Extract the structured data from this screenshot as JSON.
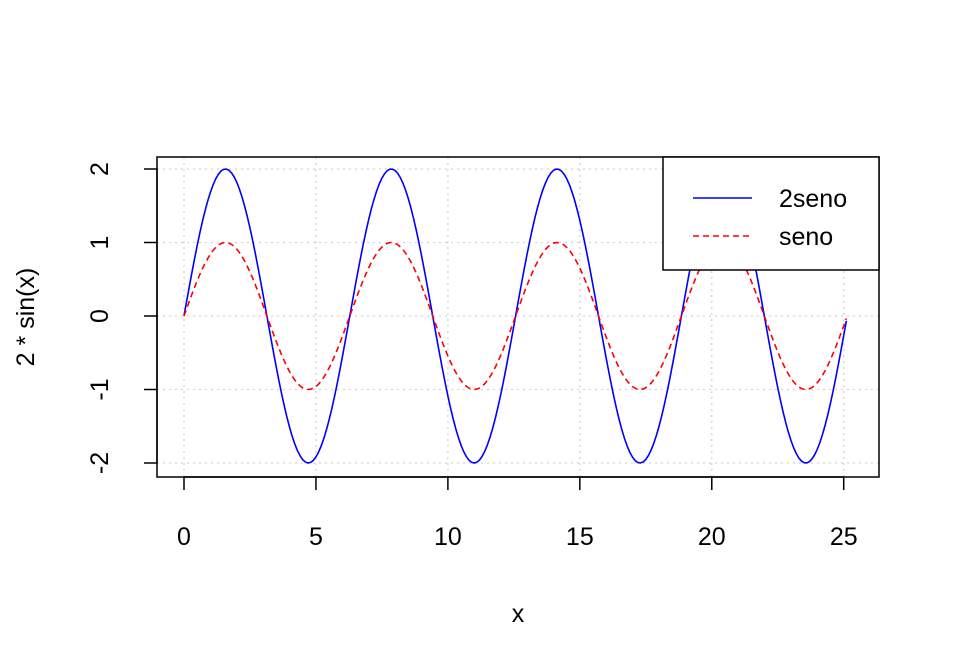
{
  "chart_data": {
    "type": "line",
    "title": "",
    "xlabel": "x",
    "ylabel": "2 * sin(x)",
    "xlim": [
      0,
      25.2
    ],
    "ylim": [
      -2,
      2
    ],
    "x_ticks": [
      0,
      5,
      10,
      15,
      20,
      25
    ],
    "y_ticks": [
      -2,
      -1,
      0,
      1,
      2
    ],
    "grid": true,
    "legend_position": "top-right",
    "x_from": 0,
    "x_to": 25.1,
    "x_step": 0.1,
    "series": [
      {
        "name": "2seno",
        "function": "2*sin(x)",
        "amplitude": 2,
        "color": "#0000ff",
        "line_style": "solid"
      },
      {
        "name": "seno",
        "function": "sin(x)",
        "amplitude": 1,
        "color": "#ff0000",
        "line_style": "dashed"
      }
    ]
  }
}
